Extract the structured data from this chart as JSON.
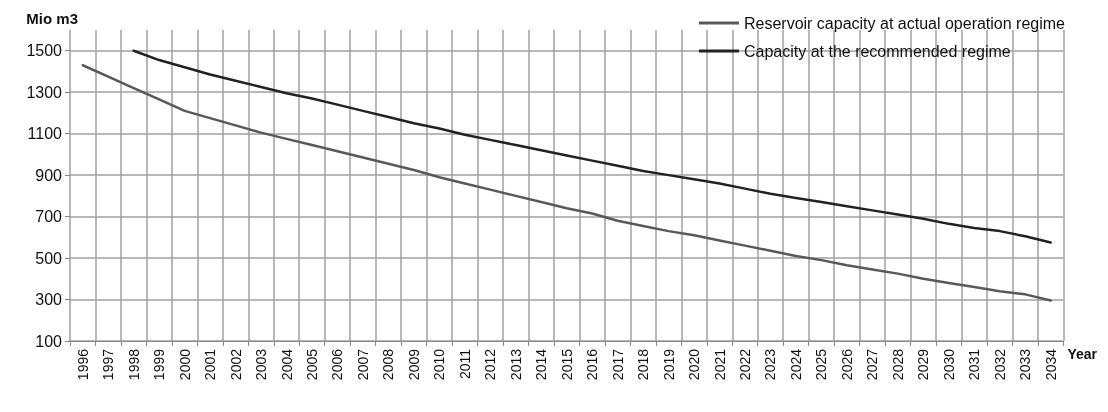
{
  "chart_data": {
    "type": "line",
    "ylabel": "Mio m3",
    "xlabel": "Year",
    "categories": [
      "1996",
      "1997",
      "1998",
      "1999",
      "2000",
      "2001",
      "2002",
      "2003",
      "2004",
      "2005",
      "2006",
      "2007",
      "2008",
      "2009",
      "2010",
      "2011",
      "2012",
      "2013",
      "2014",
      "2015",
      "2016",
      "2017",
      "2018",
      "2019",
      "2020",
      "2021",
      "2022",
      "2023",
      "2024",
      "2025",
      "2026",
      "2027",
      "2028",
      "2029",
      "2030",
      "2031",
      "2032",
      "2033",
      "2034"
    ],
    "series": [
      {
        "name": "Reservoir capacity at actual operation regime",
        "color": "#595959",
        "values": [
          1430,
          1375,
          1320,
          1265,
          1210,
          1175,
          1140,
          1105,
          1075,
          1045,
          1015,
          985,
          955,
          925,
          890,
          860,
          830,
          800,
          770,
          740,
          715,
          680,
          655,
          630,
          610,
          585,
          560,
          535,
          510,
          490,
          465,
          445,
          425,
          400,
          380,
          360,
          340,
          325,
          295
        ]
      },
      {
        "name": "Capacity at the recommended regime",
        "color": "#222222",
        "values": [
          null,
          null,
          1500,
          1455,
          1420,
          1385,
          1355,
          1325,
          1295,
          1270,
          1240,
          1210,
          1180,
          1150,
          1125,
          1095,
          1070,
          1045,
          1020,
          995,
          970,
          945,
          920,
          900,
          880,
          860,
          835,
          810,
          790,
          770,
          750,
          730,
          710,
          690,
          665,
          645,
          630,
          605,
          575
        ]
      }
    ],
    "ylim": [
      100,
      1600
    ],
    "yticks": [
      100,
      300,
      500,
      700,
      900,
      1100,
      1300,
      1500
    ],
    "grid": true,
    "legend": "top right",
    "marker": "none",
    "line_style": "solid"
  }
}
